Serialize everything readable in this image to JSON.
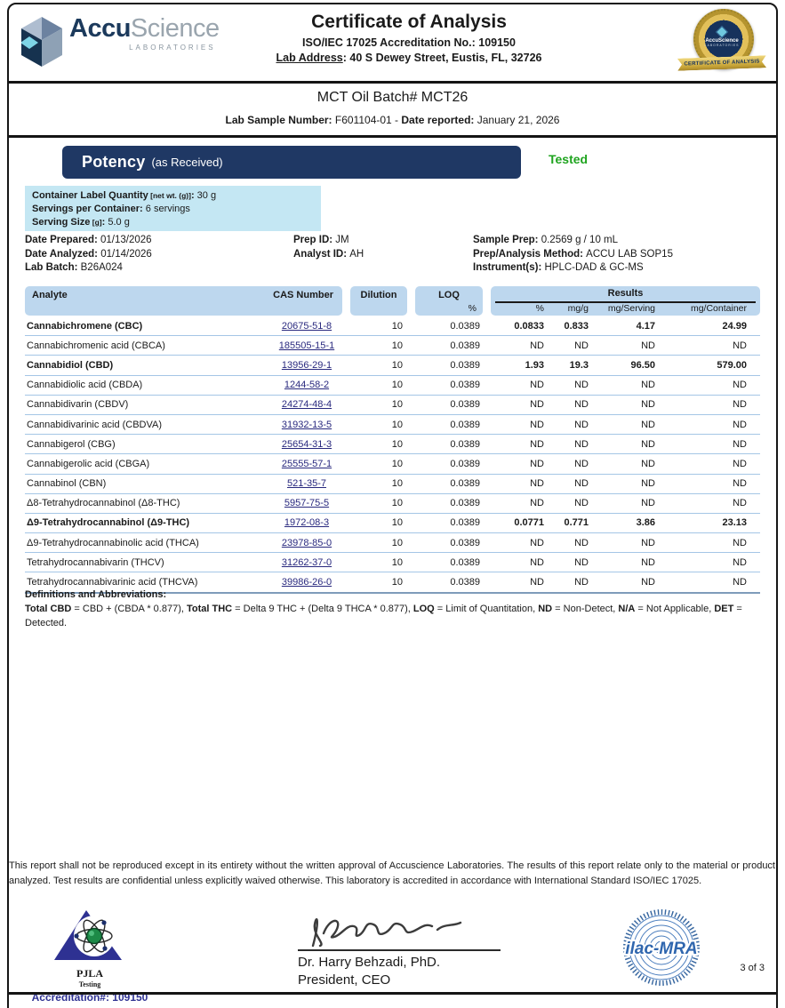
{
  "colors": {
    "brand_navy": "#1f3864",
    "status_green": "#1fa41f",
    "table_header_blue": "#bdd7ee",
    "highlight_box_blue": "#c4e7f3",
    "link_blue": "#28287e",
    "pjla_blue": "#2e3192"
  },
  "header": {
    "logo_accu": "Accu",
    "logo_science": "Science",
    "logo_sub": "LABORATORIES",
    "title": "Certificate of Analysis",
    "accreditation_line": "ISO/IEC 17025 Accreditation No.: 109150",
    "lab_address_label": "Lab Address",
    "lab_address_value": ": 40 S Dewey Street, Eustis, FL, 32726",
    "seal_brand": "AccuScience",
    "seal_sub": "LABORATORIES",
    "seal_ribbon": "CERTIFICATE OF ANALYSIS"
  },
  "sample": {
    "batch_title": "MCT Oil Batch# MCT26",
    "lab_sample_label": "Lab Sample Number:",
    "lab_sample_value": " F601104-01 - ",
    "date_reported_label": "Date reported:",
    "date_reported_value": " January 21, 2026"
  },
  "potency": {
    "title": "Potency",
    "subtitle": "(as Received)",
    "status": "Tested",
    "container_box": [
      {
        "label": "Container Label Quantity",
        "bracket": "[net wt. (g)]",
        "value": "30 g"
      },
      {
        "label": "Servings per Container",
        "bracket": "",
        "value": "6 servings"
      },
      {
        "label": "Serving Size",
        "bracket": "[g]",
        "value": "5.0 g"
      }
    ],
    "info_col1": [
      {
        "label": "Date Prepared",
        "value": "01/13/2026"
      },
      {
        "label": "Date Analyzed",
        "value": "01/14/2026"
      },
      {
        "label": "Lab Batch",
        "value": "B26A024"
      }
    ],
    "info_col2": [
      {
        "label": "Prep ID",
        "value": "JM"
      },
      {
        "label": "Analyst ID",
        "value": "AH"
      }
    ],
    "info_col3": [
      {
        "label": "Sample Prep",
        "value": "0.2569 g / 10 mL"
      },
      {
        "label": "Prep/Analysis Method",
        "value": "ACCU LAB SOP15"
      },
      {
        "label": "Instrument(s)",
        "value": "HPLC-DAD & GC-MS"
      }
    ]
  },
  "table": {
    "headers": {
      "analyte": "Analyte",
      "cas": "CAS Number",
      "dilution": "Dilution",
      "loq": "LOQ",
      "loq_unit": "%",
      "results": "Results",
      "result_units": [
        "%",
        "mg/g",
        "mg/Serving",
        "mg/Container"
      ]
    },
    "rows": [
      {
        "analyte": "Cannabichromene (CBC)",
        "cas": "20675-51-8",
        "dilution": "10",
        "loq": "0.0389",
        "values": [
          "0.0833",
          "0.833",
          "4.17",
          "24.99"
        ],
        "bold": true
      },
      {
        "analyte": "Cannabichromenic acid (CBCA)",
        "cas": "185505-15-1",
        "dilution": "10",
        "loq": "0.0389",
        "values": [
          "ND",
          "ND",
          "ND",
          "ND"
        ],
        "bold": false
      },
      {
        "analyte": "Cannabidiol (CBD)",
        "cas": "13956-29-1",
        "dilution": "10",
        "loq": "0.0389",
        "values": [
          "1.93",
          "19.3",
          "96.50",
          "579.00"
        ],
        "bold": true
      },
      {
        "analyte": "Cannabidiolic acid (CBDA)",
        "cas": "1244-58-2",
        "dilution": "10",
        "loq": "0.0389",
        "values": [
          "ND",
          "ND",
          "ND",
          "ND"
        ],
        "bold": false
      },
      {
        "analyte": "Cannabidivarin (CBDV)",
        "cas": "24274-48-4",
        "dilution": "10",
        "loq": "0.0389",
        "values": [
          "ND",
          "ND",
          "ND",
          "ND"
        ],
        "bold": false
      },
      {
        "analyte": "Cannabidivarinic acid (CBDVA)",
        "cas": "31932-13-5",
        "dilution": "10",
        "loq": "0.0389",
        "values": [
          "ND",
          "ND",
          "ND",
          "ND"
        ],
        "bold": false
      },
      {
        "analyte": "Cannabigerol (CBG)",
        "cas": "25654-31-3",
        "dilution": "10",
        "loq": "0.0389",
        "values": [
          "ND",
          "ND",
          "ND",
          "ND"
        ],
        "bold": false
      },
      {
        "analyte": "Cannabigerolic acid (CBGA)",
        "cas": "25555-57-1",
        "dilution": "10",
        "loq": "0.0389",
        "values": [
          "ND",
          "ND",
          "ND",
          "ND"
        ],
        "bold": false
      },
      {
        "analyte": "Cannabinol (CBN)",
        "cas": "521-35-7",
        "dilution": "10",
        "loq": "0.0389",
        "values": [
          "ND",
          "ND",
          "ND",
          "ND"
        ],
        "bold": false
      },
      {
        "analyte": "Δ8-Tetrahydrocannabinol (Δ8-THC)",
        "cas": "5957-75-5",
        "dilution": "10",
        "loq": "0.0389",
        "values": [
          "ND",
          "ND",
          "ND",
          "ND"
        ],
        "bold": false
      },
      {
        "analyte": "Δ9-Tetrahydrocannabinol (Δ9-THC)",
        "cas": "1972-08-3",
        "dilution": "10",
        "loq": "0.0389",
        "values": [
          "0.0771",
          "0.771",
          "3.86",
          "23.13"
        ],
        "bold": true
      },
      {
        "analyte": "Δ9-Tetrahydrocannabinolic acid (THCA)",
        "cas": "23978-85-0",
        "dilution": "10",
        "loq": "0.0389",
        "values": [
          "ND",
          "ND",
          "ND",
          "ND"
        ],
        "bold": false
      },
      {
        "analyte": "Tetrahydrocannabivarin (THCV)",
        "cas": "31262-37-0",
        "dilution": "10",
        "loq": "0.0389",
        "values": [
          "ND",
          "ND",
          "ND",
          "ND"
        ],
        "bold": false
      },
      {
        "analyte": "Tetrahydrocannabivarinic acid (THCVA)",
        "cas": "39986-26-0",
        "dilution": "10",
        "loq": "0.0389",
        "values": [
          "ND",
          "ND",
          "ND",
          "ND"
        ],
        "bold": false
      }
    ]
  },
  "definitions": {
    "title": "Definitions and Abbreviations:",
    "segments": [
      {
        "t": "Total CBD",
        "b": true
      },
      {
        "t": " = CBD + (CBDA * 0.877), ",
        "b": false
      },
      {
        "t": "Total THC",
        "b": true
      },
      {
        "t": " = Delta 9 THC + (Delta 9 THCA * 0.877), ",
        "b": false
      },
      {
        "t": "LOQ",
        "b": true
      },
      {
        "t": " = Limit of Quantitation, ",
        "b": false
      },
      {
        "t": "ND",
        "b": true
      },
      {
        "t": " = Non-Detect, ",
        "b": false
      },
      {
        "t": "N/A",
        "b": true
      },
      {
        "t": " = Not Applicable, ",
        "b": false
      },
      {
        "t": "DET",
        "b": true
      },
      {
        "t": " = Detected.",
        "b": false
      }
    ]
  },
  "disclaimer": "This report shall not be reproduced except in its entirety without the written approval of Accuscience Laboratories. The results of this report relate only to the material or product analyzed. Test results are confidential unless explicitly waived otherwise. This laboratory is accredited in accordance with International Standard ISO/IEC 17025.",
  "footer": {
    "pjla_name": "PJLA",
    "pjla_sub": "Testing",
    "pjla_accreditation": "Accreditation#:  109150",
    "signer_name": "Dr. Harry Behzadi, PhD.",
    "signer_title": "President, CEO",
    "ilac_label": "ilac-MRA",
    "page_number": "3 of 3"
  }
}
